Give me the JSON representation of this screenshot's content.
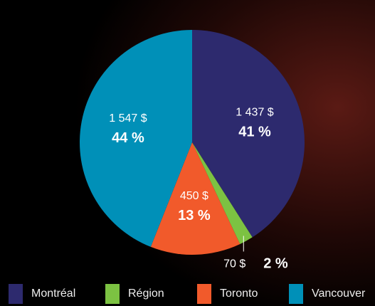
{
  "chart_data": {
    "type": "pie",
    "categories": [
      "Montréal",
      "Région",
      "Toronto",
      "Vancouver"
    ],
    "values": [
      41,
      2,
      13,
      44
    ],
    "value_labels": [
      "41 %",
      "2 %",
      "13 %",
      "44 %"
    ],
    "amounts": [
      1437,
      70,
      450,
      1547
    ],
    "amount_labels": [
      "1 437 $",
      "70 $",
      "450 $",
      "1 547 $"
    ],
    "colors": [
      "#2d2a6e",
      "#7cc242",
      "#f15a2b",
      "#0090b8"
    ]
  }
}
